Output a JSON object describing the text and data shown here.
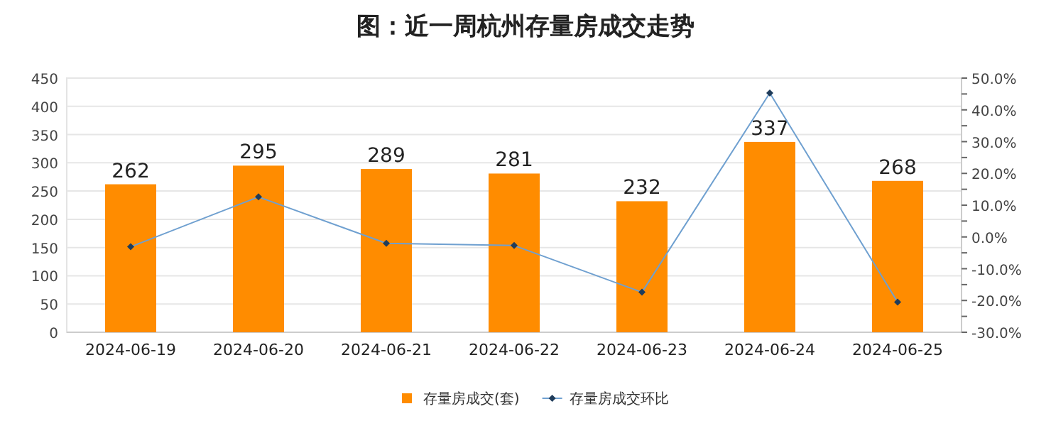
{
  "chart_data": {
    "type": "bar",
    "title": "图：近一周杭州存量房成交走势",
    "categories": [
      "2024-06-19",
      "2024-06-20",
      "2024-06-21",
      "2024-06-22",
      "2024-06-23",
      "2024-06-24",
      "2024-06-25"
    ],
    "series": [
      {
        "name": "存量房成交(套)",
        "color": "#ff8c00",
        "values": [
          262,
          295,
          289,
          281,
          232,
          337,
          268
        ],
        "value_labels": [
          "262",
          "295",
          "289",
          "281",
          "232",
          "337",
          "268"
        ]
      },
      {
        "name": "存量房成交环比",
        "type": "line",
        "axis": "y2",
        "color": "#6fa0d0",
        "marker": "diamond",
        "values": [
          -3.1,
          12.6,
          -2.0,
          -2.7,
          -17.4,
          45.3,
          -20.5
        ]
      }
    ],
    "ylim": [
      0,
      450
    ],
    "yticks": [
      0,
      50,
      100,
      150,
      200,
      250,
      300,
      350,
      400,
      450
    ],
    "y2lim": [
      -30,
      50
    ],
    "y2ticks": [
      {
        "value": -30,
        "label": "-30.0%"
      },
      {
        "value": -25,
        "label": null
      },
      {
        "value": -20,
        "label": "-20.0%"
      },
      {
        "value": -15,
        "label": null
      },
      {
        "value": -10,
        "label": "-10.0%"
      },
      {
        "value": -5,
        "label": null
      },
      {
        "value": 0,
        "label": "0.0%"
      },
      {
        "value": 5,
        "label": null
      },
      {
        "value": 10,
        "label": "10.0%"
      },
      {
        "value": 15,
        "label": null
      },
      {
        "value": 20,
        "label": "20.0%"
      },
      {
        "value": 25,
        "label": null
      },
      {
        "value": 30,
        "label": "30.0%"
      },
      {
        "value": 35,
        "label": null
      },
      {
        "value": 40,
        "label": "40.0%"
      },
      {
        "value": 45,
        "label": null
      },
      {
        "value": 50,
        "label": "50.0%"
      }
    ],
    "grid": "y",
    "legend": "bottom"
  }
}
